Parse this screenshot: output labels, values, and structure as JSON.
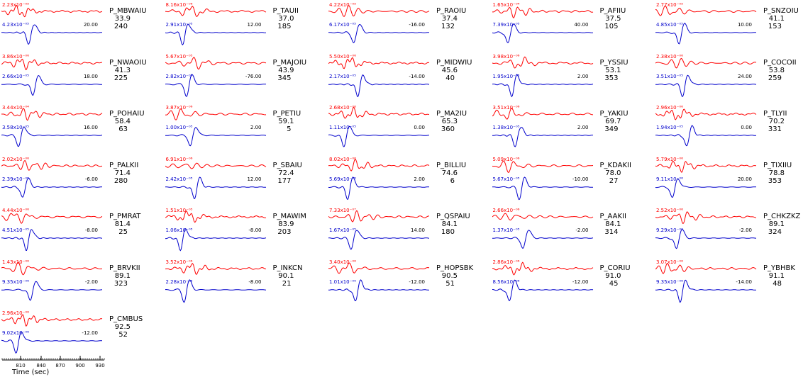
{
  "chart_data": {
    "type": "line",
    "xlabel": "Time (sec)",
    "x_ticks": [
      "810",
      "840",
      "870",
      "900",
      "930"
    ],
    "colors": {
      "observed": "#ff0000",
      "synthetic": "#0000cc"
    },
    "panels": [
      {
        "station": "P_MBWAIU",
        "dist": "33.9",
        "az": "240",
        "amp_obs": "2.23x10⁻⁰⁵",
        "amp_syn": "4.23x10⁻⁰⁵",
        "shift": "20.00"
      },
      {
        "station": "P_TAUII",
        "dist": "37.0",
        "az": "185",
        "amp_obs": "8.16x10⁻⁰⁶",
        "amp_syn": "2.91x10⁻⁰⁵",
        "shift": "12.00"
      },
      {
        "station": "P_RAOIU",
        "dist": "37.4",
        "az": "132",
        "amp_obs": "4.22x10⁻⁰⁵",
        "amp_syn": "6.17x10⁻⁰⁵",
        "shift": "-16.00"
      },
      {
        "station": "P_AFIIU",
        "dist": "37.5",
        "az": "105",
        "amp_obs": "1.65x10⁻⁰⁴",
        "amp_syn": "7.39x10⁻⁰⁵",
        "shift": "40.00"
      },
      {
        "station": "P_SNZOIU",
        "dist": "41.1",
        "az": "153",
        "amp_obs": "2.77x10⁻⁰⁵",
        "amp_syn": "4.85x10⁻⁰⁵",
        "shift": "10.00"
      },
      {
        "station": "P_NWAOIU",
        "dist": "41.3",
        "az": "225",
        "amp_obs": "3.86x10⁻⁰⁶",
        "amp_syn": "2.66x10⁻⁰⁵",
        "shift": "18.00"
      },
      {
        "station": "P_MAJOIU",
        "dist": "43.9",
        "az": "345",
        "amp_obs": "5.67x10⁻⁰⁵",
        "amp_syn": "2.82x10⁻⁰⁵",
        "shift": "-76.00"
      },
      {
        "station": "P_MIDWIU",
        "dist": "45.6",
        "az": "40",
        "amp_obs": "5.50x10⁻⁰⁶",
        "amp_syn": "2.17x10⁻⁰⁵",
        "shift": "-14.00"
      },
      {
        "station": "P_YSSIU",
        "dist": "53.1",
        "az": "353",
        "amp_obs": "3.98x10⁻⁰⁶",
        "amp_syn": "1.95x10⁻⁰⁵",
        "shift": "2.00"
      },
      {
        "station": "P_COCOII",
        "dist": "53.8",
        "az": "259",
        "amp_obs": "2.38x10⁻⁰⁶",
        "amp_syn": "3.51x10⁻⁰⁵",
        "shift": "24.00"
      },
      {
        "station": "P_POHAIU",
        "dist": "58.4",
        "az": "63",
        "amp_obs": "3.44x10⁻⁰⁴",
        "amp_syn": "3.58x10⁻⁰⁵",
        "shift": "16.00"
      },
      {
        "station": "P_PETIU",
        "dist": "59.1",
        "az": "5",
        "amp_obs": "3.87x10⁻⁰⁶",
        "amp_syn": "1.00x10⁻⁰⁵",
        "shift": "2.00"
      },
      {
        "station": "P_MA2IU",
        "dist": "65.3",
        "az": "360",
        "amp_obs": "2.68x10⁻⁰⁶",
        "amp_syn": "1.11x10⁻⁰⁵",
        "shift": "0.00"
      },
      {
        "station": "P_YAKIU",
        "dist": "69.7",
        "az": "349",
        "amp_obs": "3.51x10⁻⁰⁶",
        "amp_syn": "1.38x10⁻⁰⁵",
        "shift": "2.00"
      },
      {
        "station": "P_TLYII",
        "dist": "70.2",
        "az": "331",
        "amp_obs": "2.96x10⁻⁰⁶",
        "amp_syn": "1.94x10⁻⁰⁵",
        "shift": "0.00"
      },
      {
        "station": "P_PALKII",
        "dist": "71.4",
        "az": "280",
        "amp_obs": "2.02x10⁻⁰⁶",
        "amp_syn": "2.39x10⁻⁰⁵",
        "shift": "-6.00"
      },
      {
        "station": "P_SBAIU",
        "dist": "72.4",
        "az": "177",
        "amp_obs": "6.91x10⁻⁰⁶",
        "amp_syn": "2.42x10⁻⁰⁵",
        "shift": "12.00"
      },
      {
        "station": "P_BILLIU",
        "dist": "74.6",
        "az": "6",
        "amp_obs": "8.02x10⁻⁰⁶",
        "amp_syn": "5.69x10⁻⁰⁵",
        "shift": "2.00"
      },
      {
        "station": "P_KDAKII",
        "dist": "78.0",
        "az": "27",
        "amp_obs": "5.09x10⁻⁰⁶",
        "amp_syn": "5.67x10⁻⁰⁵",
        "shift": "-10.00"
      },
      {
        "station": "P_TIXIIU",
        "dist": "78.8",
        "az": "353",
        "amp_obs": "5.79x10⁻⁰⁶",
        "amp_syn": "9.11x10⁻⁰⁶",
        "shift": "20.00"
      },
      {
        "station": "P_PMRAT",
        "dist": "81.4",
        "az": "25",
        "amp_obs": "4.44x10⁻⁰⁶",
        "amp_syn": "4.51x10⁻⁰⁵",
        "shift": "-8.00"
      },
      {
        "station": "P_MAWIM",
        "dist": "83.9",
        "az": "203",
        "amp_obs": "1.51x10⁻⁰⁵",
        "amp_syn": "1.06x10⁻⁰⁵",
        "shift": "-8.00"
      },
      {
        "station": "P_QSPAIU",
        "dist": "84.1",
        "az": "180",
        "amp_obs": "7.33x10⁻⁰⁷",
        "amp_syn": "1.67x10⁻⁰⁵",
        "shift": "14.00"
      },
      {
        "station": "P_AAKII",
        "dist": "84.1",
        "az": "314",
        "amp_obs": "2.66x10⁻⁰⁶",
        "amp_syn": "1.37x10⁻⁰⁵",
        "shift": "-2.00"
      },
      {
        "station": "P_CHKZKZ",
        "dist": "89.1",
        "az": "324",
        "amp_obs": "2.52x10⁻⁰⁶",
        "amp_syn": "9.29x10⁻⁰⁶",
        "shift": "-2.00"
      },
      {
        "station": "P_BRVKII",
        "dist": "89.1",
        "az": "323",
        "amp_obs": "1.43x10⁻⁰⁶",
        "amp_syn": "9.35x10⁻⁰⁶",
        "shift": "-2.00"
      },
      {
        "station": "P_INKCN",
        "dist": "90.1",
        "az": "21",
        "amp_obs": "3.52x10⁻⁰⁶",
        "amp_syn": "2.28x10⁻⁰⁵",
        "shift": "-8.00"
      },
      {
        "station": "P_HOPSBK",
        "dist": "90.5",
        "az": "51",
        "amp_obs": "3.40x10⁻⁰⁶",
        "amp_syn": "1.01x10⁻⁰⁵",
        "shift": "-12.00"
      },
      {
        "station": "P_CORIU",
        "dist": "91.0",
        "az": "45",
        "amp_obs": "2.86x10⁻⁰⁶",
        "amp_syn": "8.56x10⁻⁰⁶",
        "shift": "-12.00"
      },
      {
        "station": "P_YBHBK",
        "dist": "91.1",
        "az": "48",
        "amp_obs": "3.07x10⁻⁰⁶",
        "amp_syn": "9.35x10⁻⁰⁶",
        "shift": "-14.00"
      },
      {
        "station": "P_CMBUS",
        "dist": "92.5",
        "az": "52",
        "amp_obs": "2.96x10⁻⁰⁶",
        "amp_syn": "9.02x10⁻⁰⁶",
        "shift": "-12.00"
      }
    ]
  }
}
